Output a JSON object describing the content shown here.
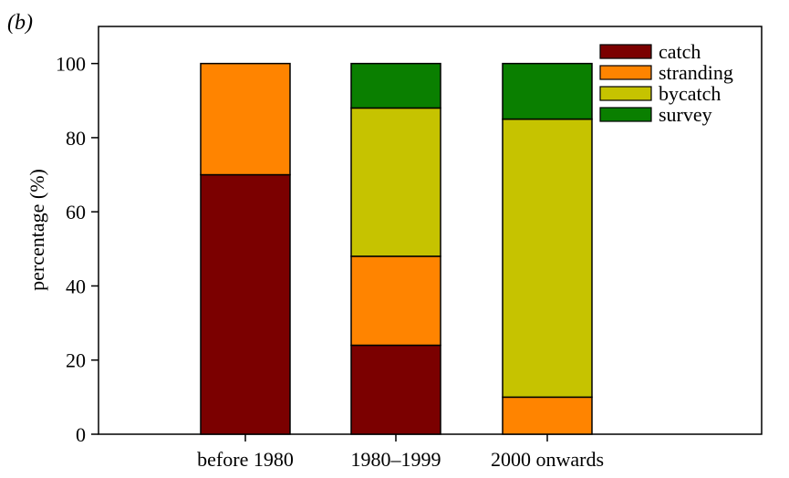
{
  "panel_label": "(b)",
  "chart_data": {
    "type": "bar",
    "stacked": true,
    "categories": [
      "before 1980",
      "1980–1999",
      "2000 onwards"
    ],
    "series": [
      {
        "name": "catch",
        "color": "#7b0000",
        "values": [
          70,
          24,
          0
        ]
      },
      {
        "name": "stranding",
        "color": "#ff8400",
        "values": [
          30,
          24,
          10
        ]
      },
      {
        "name": "bycatch",
        "color": "#c6c300",
        "values": [
          0,
          40,
          75
        ]
      },
      {
        "name": "survey",
        "color": "#0a7f00",
        "values": [
          0,
          12,
          15
        ]
      }
    ],
    "title": "",
    "xlabel": "",
    "ylabel": "percentage (%)",
    "ylim": [
      0,
      110
    ],
    "yticks": [
      0,
      20,
      40,
      60,
      80,
      100
    ],
    "grid": false,
    "legend_position": "top-right"
  }
}
